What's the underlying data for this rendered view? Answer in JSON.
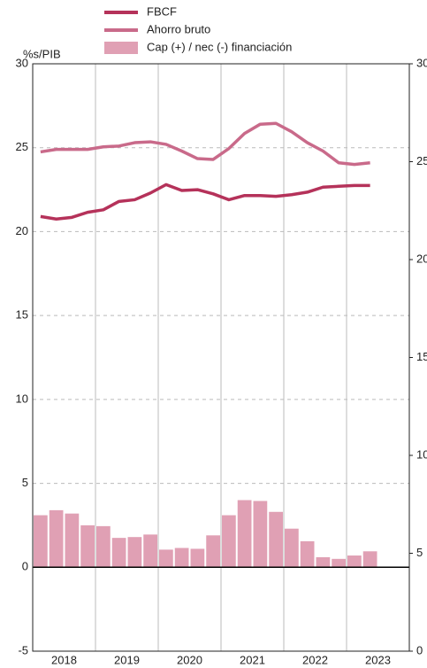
{
  "chart_data": {
    "type": "bar-line",
    "y_label": "%s/PIB",
    "years": [
      "2018",
      "2019",
      "2020",
      "2021",
      "2022",
      "2023"
    ],
    "quarters_per_year": 4,
    "ylim": [
      -5,
      30
    ],
    "yticks": [
      -5,
      0,
      5,
      10,
      15,
      20,
      25,
      30
    ],
    "y2lim": [
      0,
      30
    ],
    "y2ticks": [
      0,
      5,
      10,
      15,
      20,
      25,
      30
    ],
    "grid": true,
    "series": [
      {
        "name": "FBCF",
        "type": "line",
        "color": "#b5325a",
        "values": [
          20.9,
          20.75,
          20.85,
          21.15,
          21.3,
          21.8,
          21.9,
          22.3,
          22.8,
          22.45,
          22.5,
          22.25,
          21.9,
          22.15,
          22.15,
          22.1,
          22.2,
          22.35,
          22.65,
          22.7,
          22.75,
          22.75,
          null,
          null
        ]
      },
      {
        "name": "Ahorro bruto",
        "type": "line",
        "color": "#c96a8a",
        "values": [
          24.75,
          24.9,
          24.9,
          24.9,
          25.05,
          25.1,
          25.3,
          25.35,
          25.2,
          24.8,
          24.35,
          24.3,
          24.95,
          25.85,
          26.4,
          26.45,
          25.95,
          25.3,
          24.8,
          24.1,
          24.0,
          24.1,
          null,
          null
        ]
      },
      {
        "name": "Cap (+) / nec (-) financiación",
        "type": "bar",
        "color": "#e0a0b4",
        "values": [
          3.1,
          3.4,
          3.2,
          2.5,
          2.45,
          1.75,
          1.8,
          1.95,
          1.05,
          1.15,
          1.1,
          1.9,
          3.1,
          4.0,
          3.95,
          3.3,
          2.3,
          1.55,
          0.6,
          0.5,
          0.7,
          0.95,
          null,
          null
        ]
      }
    ]
  }
}
